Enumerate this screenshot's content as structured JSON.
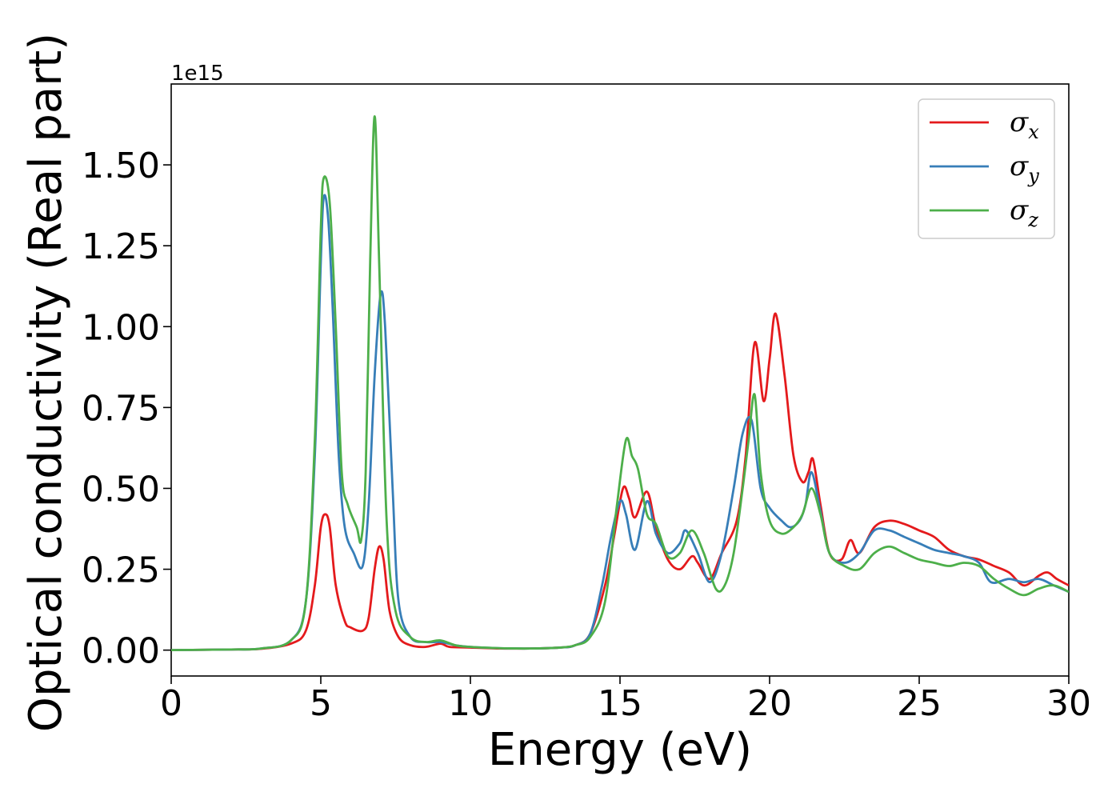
{
  "chart_data": {
    "type": "line",
    "xlabel": "Energy (eV)",
    "ylabel": "Optical conductivity (Real part)",
    "y_offset_label": "1e15",
    "xlim": [
      0,
      30
    ],
    "ylim": [
      -0.08,
      1.75
    ],
    "x_ticks": [
      0,
      5,
      10,
      15,
      20,
      25,
      30
    ],
    "x_tick_labels": [
      "0",
      "5",
      "10",
      "15",
      "20",
      "25",
      "30"
    ],
    "y_ticks": [
      0.0,
      0.25,
      0.5,
      0.75,
      1.0,
      1.25,
      1.5
    ],
    "y_tick_labels": [
      "0.00",
      "0.25",
      "0.50",
      "0.75",
      "1.00",
      "1.25",
      "1.50"
    ],
    "grid": false,
    "legend_position": "top-right",
    "series": [
      {
        "name": "σx",
        "symbol": "σ",
        "subscript": "x",
        "color": "#e41a1c",
        "points": [
          [
            0,
            0
          ],
          [
            2,
            0.002
          ],
          [
            3,
            0.004
          ],
          [
            4,
            0.02
          ],
          [
            4.5,
            0.06
          ],
          [
            4.8,
            0.2
          ],
          [
            5.0,
            0.38
          ],
          [
            5.15,
            0.42
          ],
          [
            5.3,
            0.38
          ],
          [
            5.5,
            0.2
          ],
          [
            5.8,
            0.09
          ],
          [
            6.0,
            0.07
          ],
          [
            6.4,
            0.06
          ],
          [
            6.6,
            0.1
          ],
          [
            6.8,
            0.25
          ],
          [
            6.95,
            0.32
          ],
          [
            7.1,
            0.28
          ],
          [
            7.3,
            0.12
          ],
          [
            7.6,
            0.04
          ],
          [
            8,
            0.015
          ],
          [
            8.5,
            0.01
          ],
          [
            9,
            0.02
          ],
          [
            9.3,
            0.01
          ],
          [
            10,
            0.008
          ],
          [
            11,
            0.005
          ],
          [
            12,
            0.005
          ],
          [
            13,
            0.008
          ],
          [
            13.5,
            0.015
          ],
          [
            14,
            0.05
          ],
          [
            14.5,
            0.2
          ],
          [
            14.8,
            0.35
          ],
          [
            15.1,
            0.5
          ],
          [
            15.3,
            0.47
          ],
          [
            15.5,
            0.41
          ],
          [
            15.9,
            0.49
          ],
          [
            16.2,
            0.38
          ],
          [
            16.6,
            0.28
          ],
          [
            17,
            0.25
          ],
          [
            17.4,
            0.29
          ],
          [
            17.6,
            0.27
          ],
          [
            18,
            0.22
          ],
          [
            18.4,
            0.3
          ],
          [
            18.9,
            0.4
          ],
          [
            19.2,
            0.6
          ],
          [
            19.5,
            0.95
          ],
          [
            19.8,
            0.77
          ],
          [
            20.0,
            0.9
          ],
          [
            20.2,
            1.04
          ],
          [
            20.5,
            0.85
          ],
          [
            20.8,
            0.6
          ],
          [
            21.1,
            0.52
          ],
          [
            21.3,
            0.55
          ],
          [
            21.45,
            0.59
          ],
          [
            21.7,
            0.45
          ],
          [
            22.0,
            0.3
          ],
          [
            22.4,
            0.28
          ],
          [
            22.7,
            0.34
          ],
          [
            23.0,
            0.3
          ],
          [
            23.5,
            0.38
          ],
          [
            24.0,
            0.4
          ],
          [
            24.5,
            0.39
          ],
          [
            25,
            0.37
          ],
          [
            25.5,
            0.35
          ],
          [
            26,
            0.31
          ],
          [
            26.5,
            0.29
          ],
          [
            27,
            0.28
          ],
          [
            27.5,
            0.26
          ],
          [
            28,
            0.24
          ],
          [
            28.5,
            0.2
          ],
          [
            29,
            0.23
          ],
          [
            29.3,
            0.24
          ],
          [
            29.6,
            0.22
          ],
          [
            30,
            0.2
          ]
        ]
      },
      {
        "name": "σy",
        "symbol": "σ",
        "subscript": "y",
        "color": "#377eb8",
        "points": [
          [
            0,
            0
          ],
          [
            2,
            0.002
          ],
          [
            3,
            0.005
          ],
          [
            4,
            0.03
          ],
          [
            4.5,
            0.15
          ],
          [
            4.8,
            0.6
          ],
          [
            5.0,
            1.2
          ],
          [
            5.1,
            1.4
          ],
          [
            5.25,
            1.33
          ],
          [
            5.4,
            1.05
          ],
          [
            5.6,
            0.6
          ],
          [
            5.8,
            0.38
          ],
          [
            6.1,
            0.3
          ],
          [
            6.4,
            0.26
          ],
          [
            6.6,
            0.45
          ],
          [
            6.8,
            0.85
          ],
          [
            7.0,
            1.1
          ],
          [
            7.15,
            1.0
          ],
          [
            7.4,
            0.5
          ],
          [
            7.6,
            0.15
          ],
          [
            8,
            0.04
          ],
          [
            8.5,
            0.025
          ],
          [
            9,
            0.025
          ],
          [
            9.5,
            0.015
          ],
          [
            10,
            0.01
          ],
          [
            11,
            0.006
          ],
          [
            12,
            0.005
          ],
          [
            13,
            0.008
          ],
          [
            13.5,
            0.015
          ],
          [
            14,
            0.05
          ],
          [
            14.4,
            0.2
          ],
          [
            14.7,
            0.35
          ],
          [
            15.0,
            0.46
          ],
          [
            15.2,
            0.42
          ],
          [
            15.5,
            0.31
          ],
          [
            15.9,
            0.46
          ],
          [
            16.2,
            0.36
          ],
          [
            16.6,
            0.3
          ],
          [
            17.0,
            0.33
          ],
          [
            17.2,
            0.37
          ],
          [
            17.6,
            0.3
          ],
          [
            18.0,
            0.21
          ],
          [
            18.4,
            0.3
          ],
          [
            18.8,
            0.5
          ],
          [
            19.1,
            0.67
          ],
          [
            19.4,
            0.71
          ],
          [
            19.7,
            0.5
          ],
          [
            20.0,
            0.44
          ],
          [
            20.4,
            0.4
          ],
          [
            20.7,
            0.38
          ],
          [
            21.0,
            0.4
          ],
          [
            21.2,
            0.45
          ],
          [
            21.4,
            0.55
          ],
          [
            21.7,
            0.43
          ],
          [
            22.0,
            0.3
          ],
          [
            22.5,
            0.27
          ],
          [
            23.0,
            0.3
          ],
          [
            23.5,
            0.37
          ],
          [
            24.0,
            0.37
          ],
          [
            24.5,
            0.35
          ],
          [
            25,
            0.33
          ],
          [
            25.5,
            0.31
          ],
          [
            26,
            0.3
          ],
          [
            26.5,
            0.29
          ],
          [
            27,
            0.27
          ],
          [
            27.4,
            0.21
          ],
          [
            28,
            0.22
          ],
          [
            28.5,
            0.21
          ],
          [
            29,
            0.22
          ],
          [
            29.5,
            0.2
          ],
          [
            30,
            0.18
          ]
        ]
      },
      {
        "name": "σz",
        "symbol": "σ",
        "subscript": "z",
        "color": "#4daf4a",
        "points": [
          [
            0,
            0
          ],
          [
            2,
            0.002
          ],
          [
            3,
            0.005
          ],
          [
            4,
            0.03
          ],
          [
            4.5,
            0.15
          ],
          [
            4.8,
            0.65
          ],
          [
            5.0,
            1.3
          ],
          [
            5.1,
            1.46
          ],
          [
            5.3,
            1.38
          ],
          [
            5.5,
            1.0
          ],
          [
            5.7,
            0.55
          ],
          [
            5.9,
            0.45
          ],
          [
            6.2,
            0.38
          ],
          [
            6.35,
            0.34
          ],
          [
            6.5,
            0.55
          ],
          [
            6.65,
            1.2
          ],
          [
            6.8,
            1.65
          ],
          [
            6.95,
            1.2
          ],
          [
            7.2,
            0.4
          ],
          [
            7.5,
            0.12
          ],
          [
            8,
            0.04
          ],
          [
            8.5,
            0.025
          ],
          [
            9,
            0.03
          ],
          [
            9.5,
            0.015
          ],
          [
            10,
            0.01
          ],
          [
            11,
            0.006
          ],
          [
            12,
            0.005
          ],
          [
            13,
            0.008
          ],
          [
            13.5,
            0.015
          ],
          [
            14,
            0.04
          ],
          [
            14.5,
            0.15
          ],
          [
            14.9,
            0.45
          ],
          [
            15.2,
            0.65
          ],
          [
            15.4,
            0.6
          ],
          [
            15.6,
            0.56
          ],
          [
            15.9,
            0.42
          ],
          [
            16.2,
            0.39
          ],
          [
            16.6,
            0.29
          ],
          [
            17.0,
            0.3
          ],
          [
            17.4,
            0.37
          ],
          [
            17.8,
            0.3
          ],
          [
            18.2,
            0.19
          ],
          [
            18.5,
            0.2
          ],
          [
            18.8,
            0.3
          ],
          [
            19.1,
            0.5
          ],
          [
            19.3,
            0.65
          ],
          [
            19.5,
            0.79
          ],
          [
            19.7,
            0.55
          ],
          [
            20.0,
            0.4
          ],
          [
            20.4,
            0.36
          ],
          [
            20.8,
            0.38
          ],
          [
            21.1,
            0.42
          ],
          [
            21.4,
            0.5
          ],
          [
            21.7,
            0.42
          ],
          [
            22.0,
            0.3
          ],
          [
            22.5,
            0.26
          ],
          [
            23.0,
            0.25
          ],
          [
            23.5,
            0.3
          ],
          [
            24.0,
            0.32
          ],
          [
            24.5,
            0.3
          ],
          [
            25,
            0.28
          ],
          [
            25.5,
            0.27
          ],
          [
            26,
            0.26
          ],
          [
            26.5,
            0.27
          ],
          [
            27,
            0.26
          ],
          [
            27.5,
            0.22
          ],
          [
            28,
            0.19
          ],
          [
            28.5,
            0.17
          ],
          [
            29,
            0.19
          ],
          [
            29.5,
            0.2
          ],
          [
            30,
            0.18
          ]
        ]
      }
    ]
  }
}
